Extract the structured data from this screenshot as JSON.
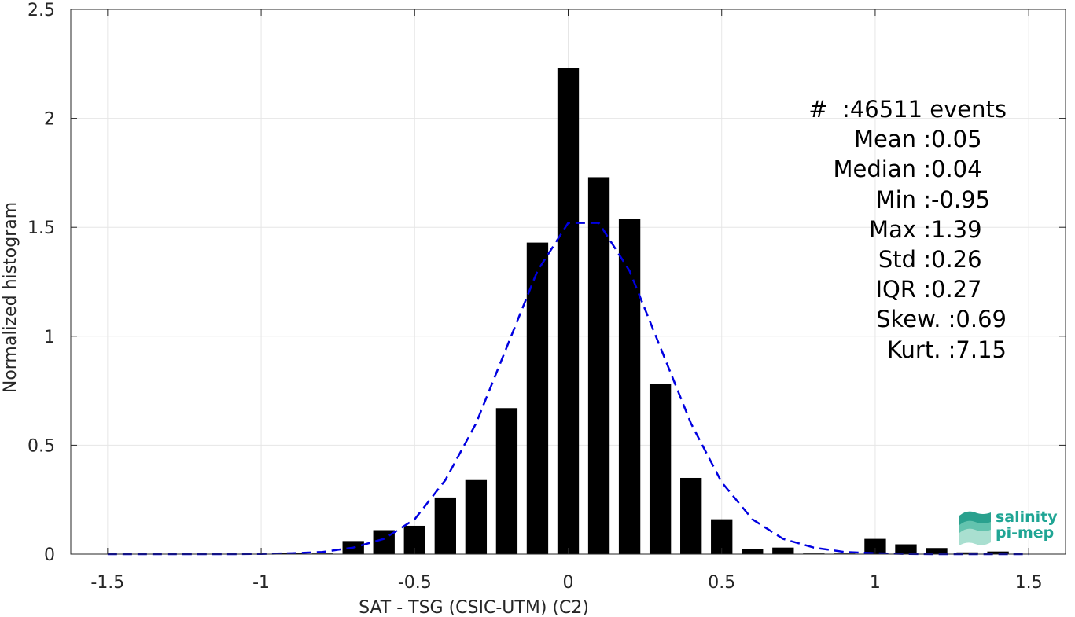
{
  "chart_data": {
    "type": "bar",
    "xlabel": "SAT - TSG (CSIC-UTM) (C2)",
    "ylabel": "Normalized histogram",
    "xlim": [
      -1.62,
      1.62
    ],
    "ylim": [
      0,
      2.5
    ],
    "xticks": [
      -1.5,
      -1,
      -0.5,
      0,
      0.5,
      1,
      1.5
    ],
    "xtick_labels": [
      "-1.5",
      "-1",
      "-0.5",
      "0",
      "0.5",
      "1",
      "1.5"
    ],
    "yticks": [
      0,
      0.5,
      1,
      1.5,
      2,
      2.5
    ],
    "ytick_labels": [
      "0",
      "0.5",
      "1",
      "1.5",
      "2",
      "2.5"
    ],
    "grid": true,
    "bar_width": 0.07,
    "bars": {
      "x": [
        -1.5,
        -1.4,
        -1.3,
        -1.2,
        -1.1,
        -1.0,
        -0.9,
        -0.8,
        -0.7,
        -0.6,
        -0.5,
        -0.4,
        -0.3,
        -0.2,
        -0.1,
        0.0,
        0.1,
        0.2,
        0.3,
        0.4,
        0.5,
        0.6,
        0.7,
        0.8,
        0.9,
        1.0,
        1.1,
        1.2,
        1.3,
        1.4,
        1.5
      ],
      "values": [
        0,
        0,
        0,
        0,
        0,
        0,
        0.004,
        0.003,
        0.06,
        0.11,
        0.13,
        0.26,
        0.34,
        0.67,
        1.43,
        2.23,
        1.73,
        1.54,
        0.78,
        0.35,
        0.16,
        0.025,
        0.03,
        0.003,
        0.003,
        0.07,
        0.045,
        0.028,
        0.008,
        0.012,
        0
      ]
    },
    "series": [
      {
        "type": "line",
        "style": "dashed",
        "color": "#0000e0",
        "x": [
          -1.5,
          -1.4,
          -1.3,
          -1.2,
          -1.1,
          -1.0,
          -0.9,
          -0.8,
          -0.7,
          -0.6,
          -0.5,
          -0.4,
          -0.3,
          -0.2,
          -0.1,
          0.0,
          0.1,
          0.2,
          0.3,
          0.4,
          0.5,
          0.6,
          0.7,
          0.8,
          0.9,
          1.0,
          1.1,
          1.2,
          1.3,
          1.4,
          1.5
        ],
        "values": [
          0,
          0,
          0,
          0,
          0,
          0.001,
          0.004,
          0.01,
          0.03,
          0.07,
          0.16,
          0.34,
          0.6,
          0.95,
          1.3,
          1.52,
          1.52,
          1.3,
          0.95,
          0.6,
          0.33,
          0.16,
          0.07,
          0.03,
          0.01,
          0.004,
          0.001,
          0,
          0,
          0,
          0
        ]
      }
    ],
    "bar_color": "#000000"
  },
  "stats": [
    {
      "label": "#  :",
      "value": "46511 events"
    },
    {
      "label": "Mean :",
      "value": "0.05"
    },
    {
      "label": "Median :",
      "value": "0.04"
    },
    {
      "label": "Min :",
      "value": "-0.95"
    },
    {
      "label": "Max :",
      "value": "1.39"
    },
    {
      "label": "Std :",
      "value": "0.26"
    },
    {
      "label": "IQR :",
      "value": "0.27"
    },
    {
      "label": "Skew. :",
      "value": "0.69"
    },
    {
      "label": "Kurt. :",
      "value": "7.15"
    }
  ],
  "logo": {
    "line1": "salinity",
    "line2": "pi-mep"
  }
}
